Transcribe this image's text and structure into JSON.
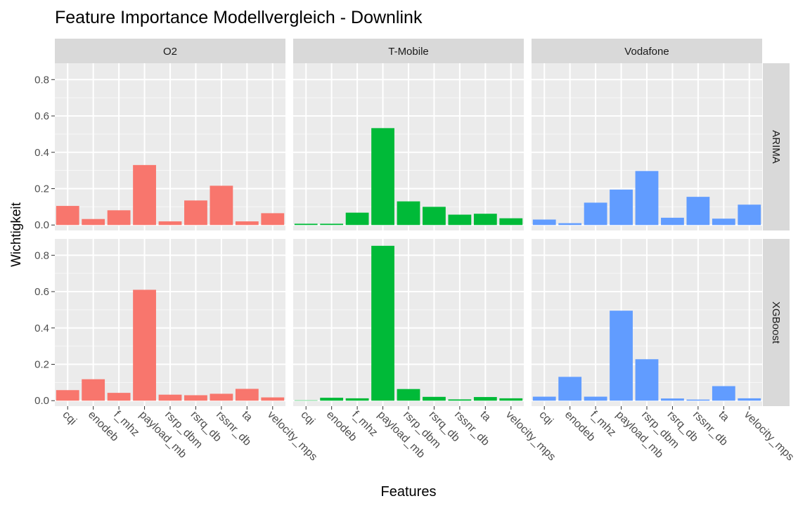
{
  "chart_data": {
    "type": "bar",
    "title": "Feature Importance Modellvergleich - Downlink",
    "xlabel": "Features",
    "ylabel": "Wichtigkeit",
    "ylim": [
      -0.03,
      0.89
    ],
    "yticks": [
      0.0,
      0.2,
      0.4,
      0.6,
      0.8
    ],
    "ytick_labels": [
      "0.0",
      "0.2",
      "0.4",
      "0.6",
      "0.8"
    ],
    "grid": true,
    "legend": "none",
    "categories": [
      "cqi",
      "enodeb",
      "f_mhz",
      "payload_mb",
      "rsrp_dbm",
      "rsrq_db",
      "rssnr_db",
      "ta",
      "velocity_mps"
    ],
    "facet_columns": [
      {
        "name": "O2",
        "color": "#F8766D"
      },
      {
        "name": "T-Mobile",
        "color": "#00BA38"
      },
      {
        "name": "Vodafone",
        "color": "#619CFF"
      }
    ],
    "facet_rows": [
      "ARIMA",
      "XGBoost"
    ],
    "panels": [
      {
        "row": "ARIMA",
        "column": "O2",
        "values": [
          0.105,
          0.033,
          0.081,
          0.33,
          0.02,
          0.135,
          0.216,
          0.02,
          0.065
        ]
      },
      {
        "row": "ARIMA",
        "column": "T-Mobile",
        "values": [
          0.007,
          0.007,
          0.068,
          0.533,
          0.13,
          0.1,
          0.057,
          0.062,
          0.037
        ]
      },
      {
        "row": "ARIMA",
        "column": "Vodafone",
        "values": [
          0.03,
          0.01,
          0.123,
          0.195,
          0.297,
          0.04,
          0.155,
          0.035,
          0.112
        ]
      },
      {
        "row": "XGBoost",
        "column": "O2",
        "values": [
          0.058,
          0.118,
          0.043,
          0.61,
          0.033,
          0.03,
          0.038,
          0.065,
          0.018
        ]
      },
      {
        "row": "XGBoost",
        "column": "T-Mobile",
        "values": [
          0.002,
          0.016,
          0.013,
          0.852,
          0.064,
          0.021,
          0.007,
          0.02,
          0.013
        ]
      },
      {
        "row": "XGBoost",
        "column": "Vodafone",
        "values": [
          0.022,
          0.131,
          0.022,
          0.495,
          0.228,
          0.012,
          0.006,
          0.08,
          0.013
        ]
      }
    ]
  }
}
